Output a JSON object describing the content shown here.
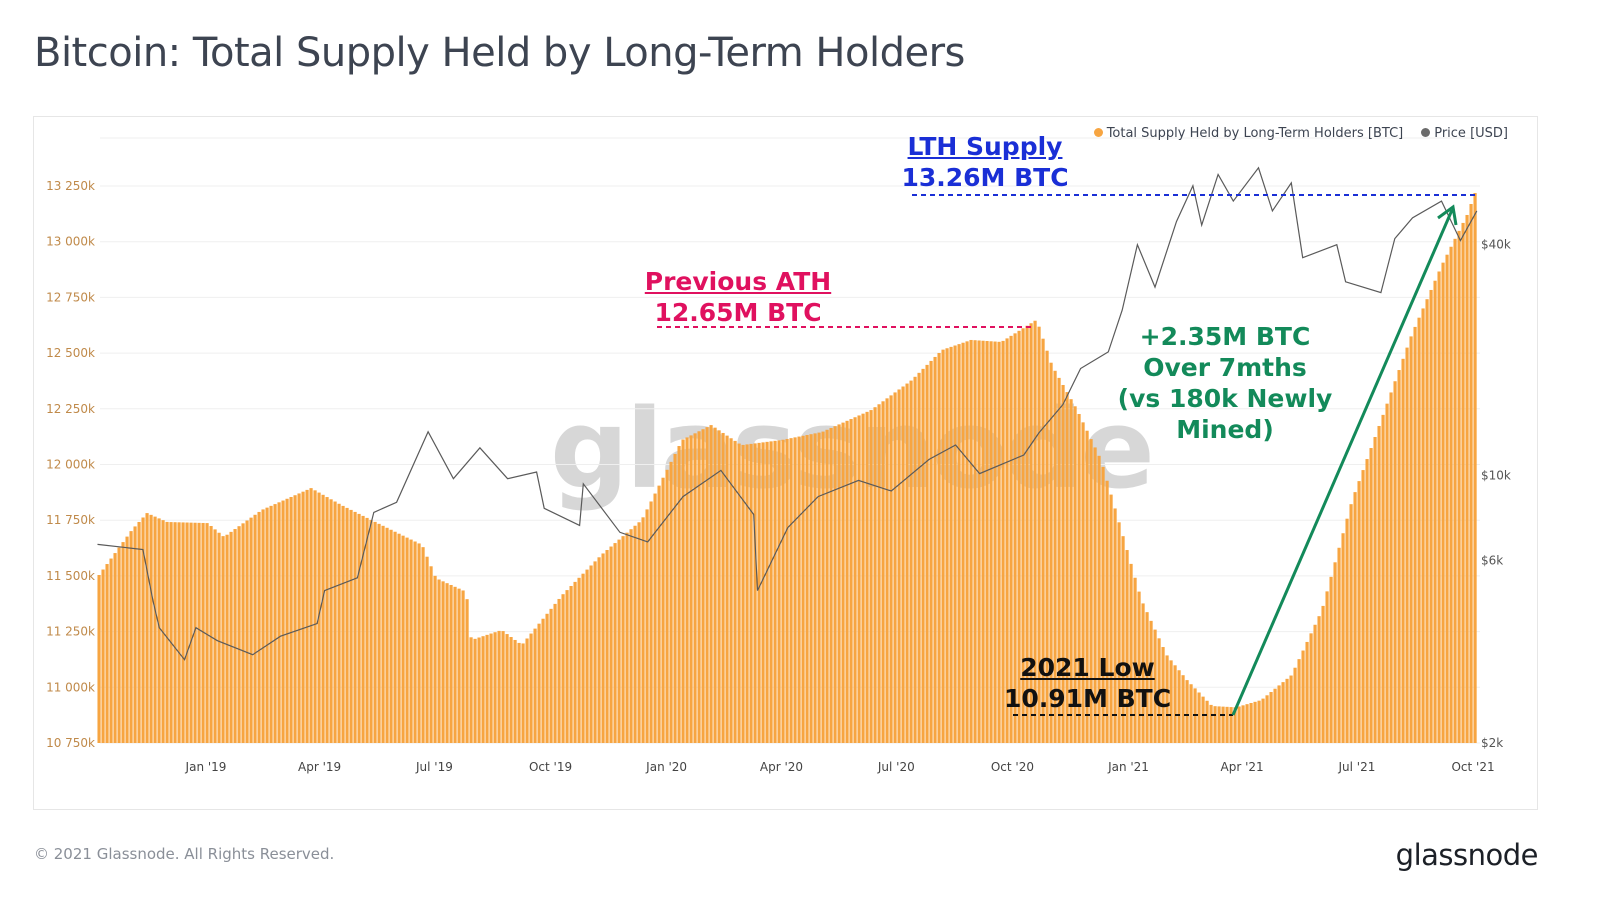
{
  "title": "Bitcoin: Total Supply Held by Long-Term Holders",
  "watermark": "glassnode",
  "footer": {
    "copyright": "© 2021 Glassnode. All Rights Reserved.",
    "logo": "glassnode"
  },
  "colors": {
    "supply": "#f7a541",
    "price": "#5a5a5a",
    "lth_annotation": "#1a2fd6",
    "ath_annotation": "#e0115f",
    "growth_annotation": "#138a5a",
    "low_annotation": "#111111"
  },
  "legend": [
    {
      "label": "Total Supply Held by Long-Term Holders [BTC]",
      "color": "#f7a541"
    },
    {
      "label": "Price [USD]",
      "color": "#6b6b6b"
    }
  ],
  "annotations": {
    "lth": {
      "title": "LTH Supply",
      "value": "13.26M BTC"
    },
    "ath": {
      "title": "Previous ATH",
      "value": "12.65M BTC"
    },
    "growth": {
      "line1": "+2.35M BTC",
      "line2": "Over 7mths",
      "line3": "(vs 180k Newly Mined)"
    },
    "low": {
      "title": "2021 Low",
      "value": "10.91M BTC"
    }
  },
  "chart_data": {
    "type": "bar",
    "title": "Bitcoin: Total Supply Held by Long-Term Holders",
    "grid": true,
    "legend_position": "top-right",
    "x_ticks": [
      "Jan '19",
      "Apr '19",
      "Jul '19",
      "Oct '19",
      "Jan '20",
      "Apr '20",
      "Jul '20",
      "Oct '20",
      "Jan '21",
      "Apr '21",
      "Jul '21",
      "Oct '21"
    ],
    "y_left": {
      "ticks": [
        "10 750k",
        "11 000k",
        "11 250k",
        "11 500k",
        "11 750k",
        "12 000k",
        "12 250k",
        "12 500k",
        "12 750k",
        "13 000k",
        "13 250k"
      ],
      "range": [
        10750,
        13250
      ]
    },
    "y_right": {
      "scale": "log",
      "ticks": [
        "$2k",
        "$6k",
        "$10k",
        "$40k"
      ]
    },
    "series": [
      {
        "name": "Total Supply Held by Long-Term Holders [BTC]",
        "type": "bar",
        "axis": "left",
        "unit": "k BTC",
        "points": [
          [
            "2018-10-07",
            11504
          ],
          [
            "2018-11-02",
            11706
          ],
          [
            "2018-11-14",
            11782
          ],
          [
            "2018-11-30",
            11742
          ],
          [
            "2019-01-01",
            11737
          ],
          [
            "2019-01-14",
            11675
          ],
          [
            "2019-02-13",
            11796
          ],
          [
            "2019-03-24",
            11894
          ],
          [
            "2019-04-17",
            11818
          ],
          [
            "2019-05-11",
            11750
          ],
          [
            "2019-06-04",
            11683
          ],
          [
            "2019-06-20",
            11639
          ],
          [
            "2019-07-01",
            11490
          ],
          [
            "2019-07-25",
            11428
          ],
          [
            "2019-07-29",
            11212
          ],
          [
            "2019-08-22",
            11257
          ],
          [
            "2019-09-07",
            11190
          ],
          [
            "2019-10-09",
            11414
          ],
          [
            "2019-11-09",
            11594
          ],
          [
            "2019-12-11",
            11751
          ],
          [
            "2020-01-12",
            12110
          ],
          [
            "2020-02-04",
            12177
          ],
          [
            "2020-02-28",
            12087
          ],
          [
            "2020-03-31",
            12110
          ],
          [
            "2020-05-02",
            12146
          ],
          [
            "2020-06-10",
            12245
          ],
          [
            "2020-07-12",
            12379
          ],
          [
            "2020-08-05",
            12514
          ],
          [
            "2020-08-28",
            12559
          ],
          [
            "2020-09-21",
            12550
          ],
          [
            "2020-10-19",
            12650
          ],
          [
            "2020-10-31",
            12446
          ],
          [
            "2020-11-20",
            12245
          ],
          [
            "2020-12-09",
            12020
          ],
          [
            "2020-12-25",
            11706
          ],
          [
            "2021-01-10",
            11392
          ],
          [
            "2021-01-30",
            11145
          ],
          [
            "2021-02-15",
            11033
          ],
          [
            "2021-03-07",
            10916
          ],
          [
            "2021-03-26",
            10910
          ],
          [
            "2021-04-15",
            10943
          ],
          [
            "2021-05-09",
            11055
          ],
          [
            "2021-06-02",
            11347
          ],
          [
            "2021-06-26",
            11841
          ],
          [
            "2021-07-19",
            12200
          ],
          [
            "2021-08-12",
            12581
          ],
          [
            "2021-09-05",
            12895
          ],
          [
            "2021-09-25",
            13120
          ],
          [
            "2021-10-04",
            13260
          ]
        ]
      },
      {
        "name": "Price [USD]",
        "type": "line",
        "axis": "right",
        "points": [
          [
            "2018-10-07",
            6600
          ],
          [
            "2018-11-12",
            6400
          ],
          [
            "2018-11-20",
            4700
          ],
          [
            "2018-11-25",
            4000
          ],
          [
            "2018-12-15",
            3300
          ],
          [
            "2018-12-24",
            4000
          ],
          [
            "2019-01-10",
            3700
          ],
          [
            "2019-02-07",
            3400
          ],
          [
            "2019-03-01",
            3800
          ],
          [
            "2019-03-30",
            4100
          ],
          [
            "2019-04-05",
            5000
          ],
          [
            "2019-05-01",
            5400
          ],
          [
            "2019-05-14",
            8000
          ],
          [
            "2019-06-01",
            8500
          ],
          [
            "2019-06-26",
            13000
          ],
          [
            "2019-07-16",
            9800
          ],
          [
            "2019-08-06",
            11800
          ],
          [
            "2019-08-28",
            9800
          ],
          [
            "2019-09-20",
            10200
          ],
          [
            "2019-09-26",
            8200
          ],
          [
            "2019-10-24",
            7400
          ],
          [
            "2019-10-27",
            9500
          ],
          [
            "2019-11-25",
            7100
          ],
          [
            "2019-12-17",
            6700
          ],
          [
            "2020-01-14",
            8800
          ],
          [
            "2020-02-13",
            10300
          ],
          [
            "2020-03-10",
            7900
          ],
          [
            "2020-03-13",
            5000
          ],
          [
            "2020-04-06",
            7300
          ],
          [
            "2020-04-30",
            8800
          ],
          [
            "2020-06-01",
            9700
          ],
          [
            "2020-06-27",
            9100
          ],
          [
            "2020-07-27",
            11000
          ],
          [
            "2020-08-17",
            12000
          ],
          [
            "2020-09-05",
            10100
          ],
          [
            "2020-10-10",
            11300
          ],
          [
            "2020-10-22",
            12900
          ],
          [
            "2020-11-10",
            15300
          ],
          [
            "2020-11-24",
            19000
          ],
          [
            "2020-12-16",
            21000
          ],
          [
            "2020-12-27",
            27000
          ],
          [
            "2021-01-08",
            40000
          ],
          [
            "2021-01-22",
            31000
          ],
          [
            "2021-02-08",
            46000
          ],
          [
            "2021-02-21",
            57000
          ],
          [
            "2021-02-28",
            45000
          ],
          [
            "2021-03-13",
            61000
          ],
          [
            "2021-03-25",
            52000
          ],
          [
            "2021-04-14",
            63500
          ],
          [
            "2021-04-25",
            49000
          ],
          [
            "2021-05-10",
            58000
          ],
          [
            "2021-05-19",
            37000
          ],
          [
            "2021-06-15",
            40000
          ],
          [
            "2021-06-22",
            32000
          ],
          [
            "2021-07-20",
            30000
          ],
          [
            "2021-07-31",
            41500
          ],
          [
            "2021-08-14",
            47000
          ],
          [
            "2021-09-06",
            52000
          ],
          [
            "2021-09-21",
            41000
          ],
          [
            "2021-10-04",
            49000
          ]
        ]
      }
    ]
  }
}
